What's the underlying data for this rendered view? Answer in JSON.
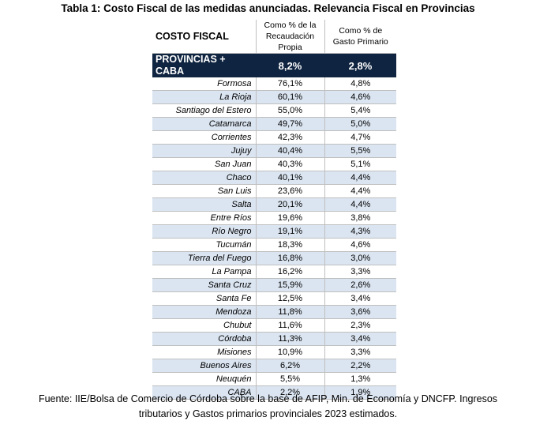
{
  "title": "Tabla 1: Costo Fiscal de las medidas anunciadas. Relevancia Fiscal en Provincias",
  "header": {
    "col1": "COSTO FISCAL",
    "col2_line1": "Como % de la",
    "col2_line2": "Recaudación",
    "col2_line3": "Propia",
    "col3_line1": "Como % de",
    "col3_line2": "Gasto Primario"
  },
  "total": {
    "name": "PROVINCIAS + CABA",
    "recaudacion": "8,2%",
    "gasto": "2,8%"
  },
  "rows": [
    {
      "name": "Formosa",
      "recaudacion": "76,1%",
      "gasto": "4,8%"
    },
    {
      "name": "La Rioja",
      "recaudacion": "60,1%",
      "gasto": "4,6%"
    },
    {
      "name": "Santiago del Estero",
      "recaudacion": "55,0%",
      "gasto": "5,4%"
    },
    {
      "name": "Catamarca",
      "recaudacion": "49,7%",
      "gasto": "5,0%"
    },
    {
      "name": "Corrientes",
      "recaudacion": "42,3%",
      "gasto": "4,7%"
    },
    {
      "name": "Jujuy",
      "recaudacion": "40,4%",
      "gasto": "5,5%"
    },
    {
      "name": "San Juan",
      "recaudacion": "40,3%",
      "gasto": "5,1%"
    },
    {
      "name": "Chaco",
      "recaudacion": "40,1%",
      "gasto": "4,4%"
    },
    {
      "name": "San Luis",
      "recaudacion": "23,6%",
      "gasto": "4,4%"
    },
    {
      "name": "Salta",
      "recaudacion": "20,1%",
      "gasto": "4,4%"
    },
    {
      "name": "Entre Ríos",
      "recaudacion": "19,6%",
      "gasto": "3,8%"
    },
    {
      "name": "Río Negro",
      "recaudacion": "19,1%",
      "gasto": "4,3%"
    },
    {
      "name": "Tucumán",
      "recaudacion": "18,3%",
      "gasto": "4,6%"
    },
    {
      "name": "Tierra del Fuego",
      "recaudacion": "16,8%",
      "gasto": "3,0%"
    },
    {
      "name": "La Pampa",
      "recaudacion": "16,2%",
      "gasto": "3,3%"
    },
    {
      "name": "Santa Cruz",
      "recaudacion": "15,9%",
      "gasto": "2,6%"
    },
    {
      "name": "Santa Fe",
      "recaudacion": "12,5%",
      "gasto": "3,4%"
    },
    {
      "name": "Mendoza",
      "recaudacion": "11,8%",
      "gasto": "3,6%"
    },
    {
      "name": "Chubut",
      "recaudacion": "11,6%",
      "gasto": "2,3%"
    },
    {
      "name": "Córdoba",
      "recaudacion": "11,3%",
      "gasto": "3,4%"
    },
    {
      "name": "Misiones",
      "recaudacion": "10,9%",
      "gasto": "3,3%"
    },
    {
      "name": "Buenos Aires",
      "recaudacion": "6,2%",
      "gasto": "2,2%"
    },
    {
      "name": "Neuquén",
      "recaudacion": "5,5%",
      "gasto": "1,3%"
    },
    {
      "name": "CABA",
      "recaudacion": "2,2%",
      "gasto": "1,9%"
    }
  ],
  "source_line1": "Fuente: IIE/Bolsa de Comercio de Córdoba sobre la base de AFIP, Min. de Economía y DNCFP. Ingresos",
  "source_line2": "tributarios y Gastos primarios provinciales 2023 estimados.",
  "colors": {
    "total_row_bg": "#0f2440",
    "stripe_bg": "#dbe5f1",
    "grid": "#bfbfbf"
  }
}
